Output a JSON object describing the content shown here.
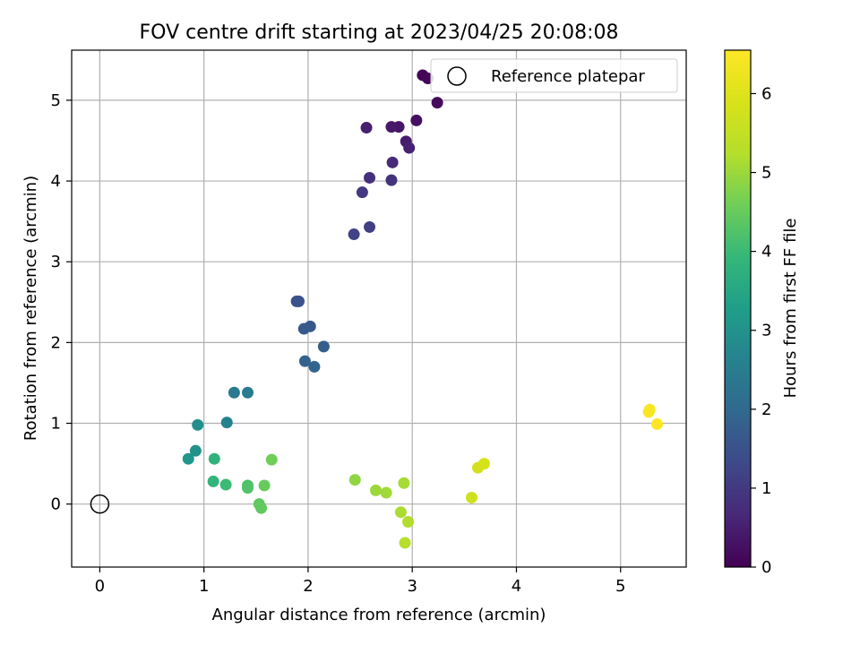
{
  "chart_data": {
    "type": "scatter",
    "title": "FOV centre drift starting at 2023/04/25 20:08:08",
    "xlabel": "Angular distance from reference (arcmin)",
    "ylabel": "Rotation from reference (arcmin)",
    "xlim": [
      -0.27,
      5.63
    ],
    "ylim": [
      -0.78,
      5.62
    ],
    "xticks": [
      "0",
      "1",
      "2",
      "3",
      "4",
      "5"
    ],
    "yticks": [
      "0",
      "1",
      "2",
      "3",
      "4",
      "5"
    ],
    "grid": true,
    "legend": {
      "placement": "top-right",
      "entries": [
        "Reference platepar"
      ]
    },
    "reference": {
      "x": 0.0,
      "y": 0.0
    },
    "colorbar": {
      "label": "Hours from first FF file",
      "range": [
        0,
        6.55
      ],
      "ticks": [
        "0",
        "1",
        "2",
        "3",
        "4",
        "5",
        "6"
      ],
      "colormap": "viridis"
    },
    "points": [
      {
        "x": 3.1,
        "y": 5.31,
        "c": 0.05
      },
      {
        "x": 3.15,
        "y": 5.27,
        "c": 0.1
      },
      {
        "x": 3.24,
        "y": 4.97,
        "c": 0.15
      },
      {
        "x": 3.04,
        "y": 4.75,
        "c": 0.25
      },
      {
        "x": 2.87,
        "y": 4.67,
        "c": 0.35
      },
      {
        "x": 2.8,
        "y": 4.67,
        "c": 0.4
      },
      {
        "x": 2.56,
        "y": 4.66,
        "c": 0.5
      },
      {
        "x": 2.94,
        "y": 4.49,
        "c": 0.45
      },
      {
        "x": 2.97,
        "y": 4.41,
        "c": 0.55
      },
      {
        "x": 2.81,
        "y": 4.23,
        "c": 0.7
      },
      {
        "x": 2.59,
        "y": 4.04,
        "c": 0.8
      },
      {
        "x": 2.8,
        "y": 4.01,
        "c": 0.85
      },
      {
        "x": 2.52,
        "y": 3.86,
        "c": 1.0
      },
      {
        "x": 2.59,
        "y": 3.43,
        "c": 1.1
      },
      {
        "x": 2.44,
        "y": 3.34,
        "c": 1.2
      },
      {
        "x": 1.89,
        "y": 2.51,
        "c": 1.5
      },
      {
        "x": 1.91,
        "y": 2.51,
        "c": 1.52
      },
      {
        "x": 2.02,
        "y": 2.2,
        "c": 1.6
      },
      {
        "x": 1.96,
        "y": 2.17,
        "c": 1.65
      },
      {
        "x": 2.15,
        "y": 1.95,
        "c": 1.75
      },
      {
        "x": 1.97,
        "y": 1.77,
        "c": 1.85
      },
      {
        "x": 2.06,
        "y": 1.7,
        "c": 1.9
      },
      {
        "x": 1.29,
        "y": 1.38,
        "c": 2.4
      },
      {
        "x": 1.42,
        "y": 1.38,
        "c": 2.45
      },
      {
        "x": 1.22,
        "y": 1.01,
        "c": 2.6
      },
      {
        "x": 0.94,
        "y": 0.98,
        "c": 2.9
      },
      {
        "x": 0.92,
        "y": 0.66,
        "c": 3.0
      },
      {
        "x": 0.85,
        "y": 0.56,
        "c": 3.1
      },
      {
        "x": 1.1,
        "y": 0.56,
        "c": 3.8
      },
      {
        "x": 1.09,
        "y": 0.28,
        "c": 3.85
      },
      {
        "x": 1.21,
        "y": 0.24,
        "c": 4.0
      },
      {
        "x": 1.42,
        "y": 0.23,
        "c": 4.2
      },
      {
        "x": 1.42,
        "y": 0.2,
        "c": 4.25
      },
      {
        "x": 1.58,
        "y": 0.23,
        "c": 4.5
      },
      {
        "x": 1.65,
        "y": 0.55,
        "c": 4.6
      },
      {
        "x": 1.53,
        "y": 0.0,
        "c": 4.4
      },
      {
        "x": 1.55,
        "y": -0.05,
        "c": 4.45
      },
      {
        "x": 2.45,
        "y": 0.3,
        "c": 4.9
      },
      {
        "x": 2.65,
        "y": 0.17,
        "c": 5.0
      },
      {
        "x": 2.75,
        "y": 0.14,
        "c": 5.05
      },
      {
        "x": 2.92,
        "y": 0.26,
        "c": 5.1
      },
      {
        "x": 2.89,
        "y": -0.1,
        "c": 5.15
      },
      {
        "x": 2.96,
        "y": -0.22,
        "c": 5.2
      },
      {
        "x": 2.93,
        "y": -0.48,
        "c": 5.25
      },
      {
        "x": 3.57,
        "y": 0.08,
        "c": 5.7
      },
      {
        "x": 3.63,
        "y": 0.45,
        "c": 5.8
      },
      {
        "x": 3.69,
        "y": 0.5,
        "c": 5.85
      },
      {
        "x": 5.27,
        "y": 1.14,
        "c": 6.5
      },
      {
        "x": 5.28,
        "y": 1.17,
        "c": 6.45
      },
      {
        "x": 5.35,
        "y": 0.99,
        "c": 6.55
      }
    ]
  }
}
